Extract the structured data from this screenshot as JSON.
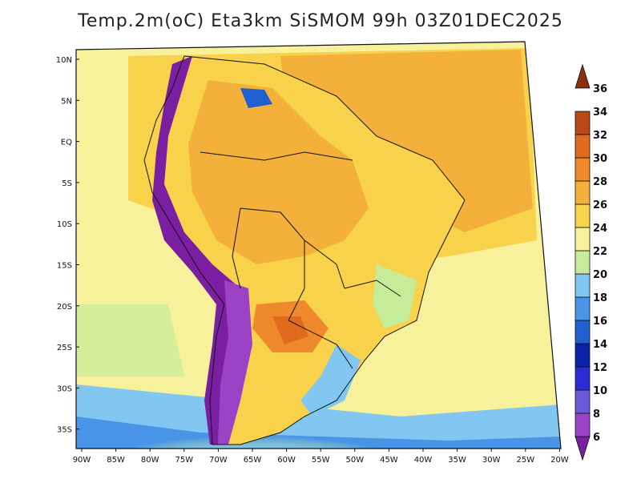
{
  "title": "Temp.2m(oC) Eta3km SiSMOM 99h 03Z01DEC2025",
  "axes": {
    "lat_labels": [
      "10N",
      "5N",
      "EQ",
      "5S",
      "10S",
      "15S",
      "20S",
      "25S",
      "30S",
      "35S"
    ],
    "lon_labels": [
      "90W",
      "85W",
      "80W",
      "75W",
      "70W",
      "65W",
      "60W",
      "55W",
      "50W",
      "45W",
      "40W",
      "35W",
      "30W",
      "25W",
      "20W"
    ]
  },
  "colorbar": {
    "labels": [
      "6",
      "8",
      "10",
      "12",
      "14",
      "16",
      "18",
      "20",
      "22",
      "24",
      "26",
      "28",
      "30",
      "32",
      "34",
      "36"
    ],
    "colors": [
      "#7b1fa2",
      "#9c42c7",
      "#6a5ad8",
      "#2b2bd6",
      "#0a22a8",
      "#1f5fd0",
      "#4a94e8",
      "#82c7f2",
      "#c6ec9a",
      "#f6f19a",
      "#f7d24a",
      "#f3b03a",
      "#ee8a2c",
      "#e06a1e",
      "#b94a16",
      "#8a2f10"
    ]
  }
}
